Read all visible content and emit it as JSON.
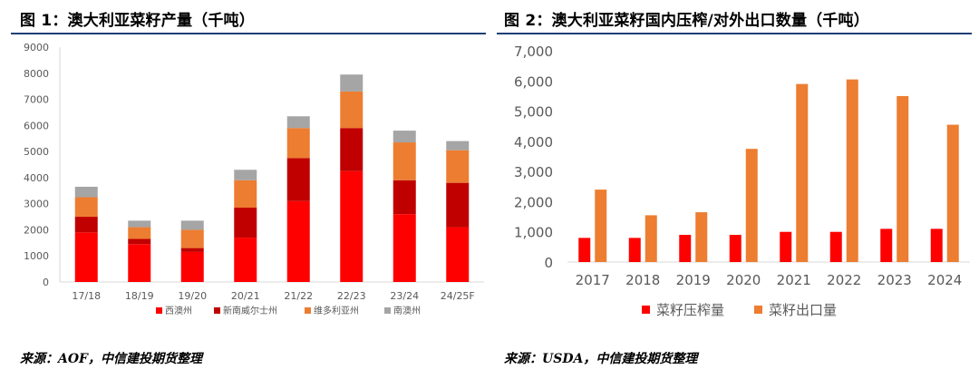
{
  "left": {
    "title": "图 1：澳大利亚菜籽产量（千吨）",
    "source": "来源：AOF，中信建投期货整理"
  },
  "right": {
    "title": "图 2：澳大利亚菜籽国内压榨/对外出口数量（千吨）",
    "source": "来源：USDA，中信建投期货整理"
  },
  "chart_data": [
    {
      "type": "bar",
      "stacked": true,
      "categories": [
        "17/18",
        "18/19",
        "19/20",
        "20/21",
        "21/22",
        "22/23",
        "23/24",
        "24/25F"
      ],
      "ylim": [
        0,
        9000
      ],
      "yticks": [
        "0",
        "1000",
        "2000",
        "3000",
        "4000",
        "5000",
        "6000",
        "7000",
        "8000",
        "9000"
      ],
      "grid": false,
      "legend_position": "bottom",
      "series": [
        {
          "name": "西澳州",
          "color": "#ff0000",
          "values": [
            1900,
            1450,
            1150,
            1700,
            3100,
            4250,
            2600,
            2100
          ]
        },
        {
          "name": "新南威尔士州",
          "color": "#c00000",
          "values": [
            600,
            200,
            150,
            1150,
            1650,
            1650,
            1300,
            1700
          ]
        },
        {
          "name": "维多利亚州",
          "color": "#ed7d31",
          "values": [
            750,
            450,
            700,
            1050,
            1150,
            1400,
            1450,
            1250
          ]
        },
        {
          "name": "南澳州",
          "color": "#a5a5a5",
          "values": [
            400,
            250,
            350,
            400,
            450,
            650,
            450,
            350
          ]
        }
      ]
    },
    {
      "type": "bar",
      "stacked": false,
      "categories": [
        "2017",
        "2018",
        "2019",
        "2020",
        "2021",
        "2022",
        "2023",
        "2024"
      ],
      "ylim": [
        0,
        7000
      ],
      "yticks": [
        "0",
        "1,000",
        "2,000",
        "3,000",
        "4,000",
        "5,000",
        "6,000",
        "7,000"
      ],
      "grid": false,
      "legend_position": "bottom",
      "series": [
        {
          "name": "菜籽压榨量",
          "color": "#ff0000",
          "values": [
            800,
            800,
            900,
            900,
            1000,
            1000,
            1100,
            1100
          ]
        },
        {
          "name": "菜籽出口量",
          "color": "#ed7d31",
          "values": [
            2400,
            1550,
            1650,
            3750,
            5900,
            6050,
            5500,
            4550
          ]
        }
      ]
    }
  ]
}
